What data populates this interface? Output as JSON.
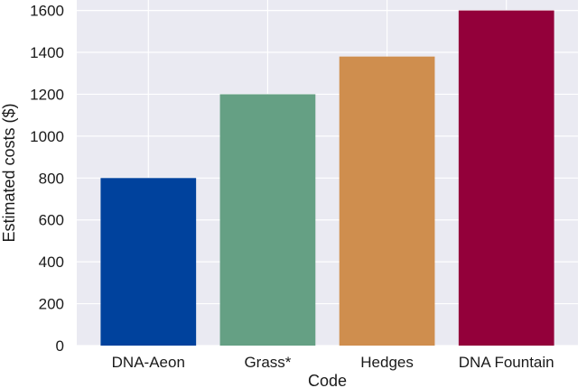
{
  "chart_data": {
    "type": "bar",
    "title": "",
    "xlabel": "Code",
    "ylabel": "Estimated costs ($)",
    "categories": [
      "DNA-Aeon",
      "Grass*",
      "Hedges",
      "DNA Fountain"
    ],
    "values": [
      800,
      1200,
      1380,
      1600
    ],
    "colors": [
      "#00429d",
      "#65a084",
      "#cf8e4e",
      "#93003a"
    ],
    "ylim": [
      0,
      1650
    ],
    "yticks": [
      0,
      200,
      400,
      600,
      800,
      1000,
      1200,
      1400,
      1600
    ],
    "grid": true
  }
}
